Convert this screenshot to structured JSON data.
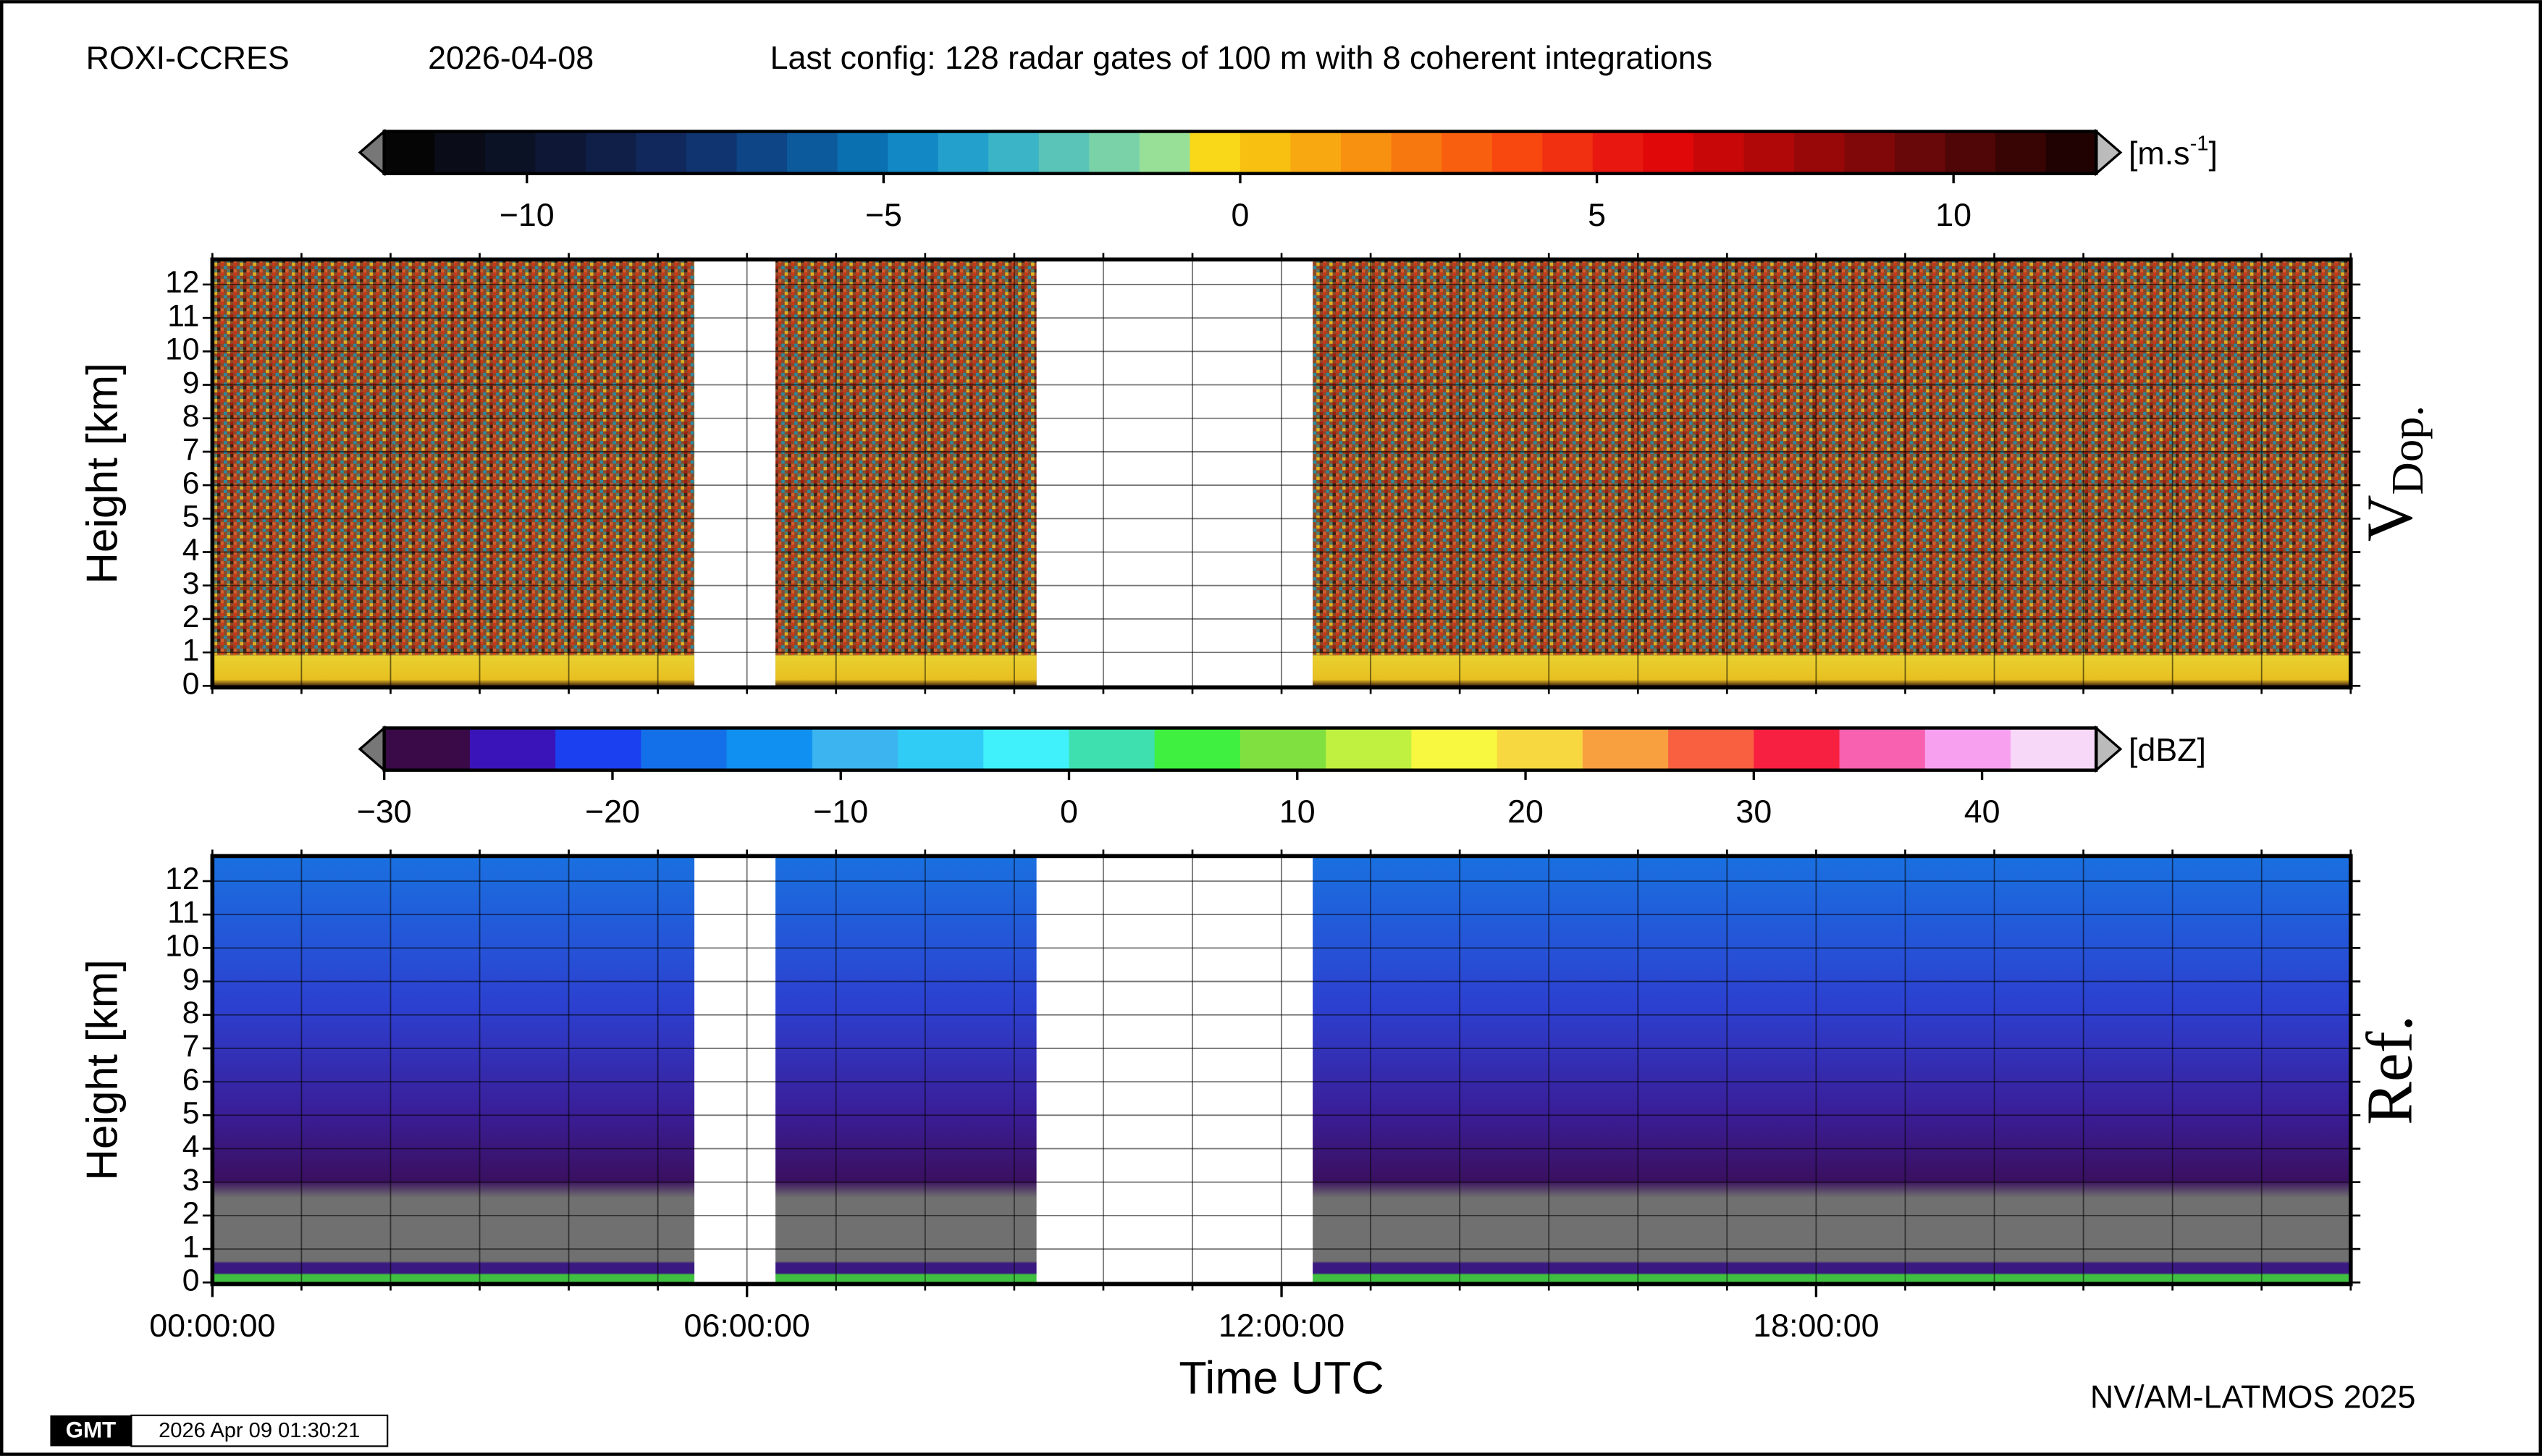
{
  "header": {
    "station": "ROXI-CCRES",
    "date": "2026-04-08",
    "config": "Last config: 128 radar gates of 100 m with 8 coherent integrations"
  },
  "chart_data": [
    {
      "type": "heatmap",
      "side_label": "V",
      "side_label_sub": "Dop.",
      "ylabel": "Height [km]",
      "colorbar": {
        "lim": [
          -12,
          12
        ],
        "ticks": [
          {
            "value": -10,
            "label": "−10"
          },
          {
            "value": -5,
            "label": "−5"
          },
          0,
          5,
          10
        ],
        "unit": "[m.s",
        "unit_sup": "-1",
        "unit_end": "]",
        "colors": [
          "#050505",
          "#0a0c18",
          "#0c1226",
          "#0e1836",
          "#0f1f48",
          "#10285c",
          "#0f3470",
          "#0e4586",
          "#0c5a9c",
          "#0a70b0",
          "#1288c4",
          "#24a0cc",
          "#3cb4c8",
          "#5ac4b8",
          "#7ad2a8",
          "#98e098",
          "#f8d818",
          "#f8c010",
          "#f8a810",
          "#f89010",
          "#f87810",
          "#f86010",
          "#f84810",
          "#f03010",
          "#e81810",
          "#e00808",
          "#c80808",
          "#b00808",
          "#980808",
          "#800808",
          "#680808",
          "#500606",
          "#380404",
          "#200202"
        ]
      },
      "xlim": [
        0,
        24
      ],
      "ylim": [
        0,
        12.7
      ],
      "yticks": [
        0,
        1,
        2,
        3,
        4,
        5,
        6,
        7,
        8,
        9,
        10,
        11,
        12
      ],
      "xminor": [
        0,
        1,
        2,
        3,
        4,
        5,
        6,
        7,
        8,
        9,
        10,
        11,
        12,
        13,
        14,
        15,
        16,
        17,
        18,
        19,
        20,
        21,
        22,
        23,
        24
      ],
      "data_periods": [
        [
          0,
          5.41
        ],
        [
          6.32,
          9.25
        ],
        [
          12.35,
          24
        ]
      ],
      "grid": true
    },
    {
      "type": "heatmap",
      "side_label": "Ref.",
      "ylabel": "Height [km]",
      "xlabel": "Time UTC",
      "colorbar": {
        "lim": [
          -30,
          45
        ],
        "ticks": [
          {
            "value": -30,
            "label": "−30"
          },
          {
            "value": -20,
            "label": "−20"
          },
          {
            "value": -10,
            "label": "−10"
          },
          0,
          10,
          20,
          30,
          40
        ],
        "unit": "[dBZ]",
        "colors": [
          "#3a0a48",
          "#3a14b8",
          "#1a40f0",
          "#1470e8",
          "#1090f0",
          "#3cb4f0",
          "#30ccf5",
          "#40f0fa",
          "#3ee0b0",
          "#40f040",
          "#80e040",
          "#c0f040",
          "#f8f840",
          "#f8d840",
          "#f8a040",
          "#f86040",
          "#f82040",
          "#f860b0",
          "#f8a0f0",
          "#f8d8f8"
        ]
      },
      "xlim": [
        0,
        24
      ],
      "ylim": [
        0,
        12.7
      ],
      "yticks": [
        0,
        1,
        2,
        3,
        4,
        5,
        6,
        7,
        8,
        9,
        10,
        11,
        12
      ],
      "xticks": [
        {
          "value": 0,
          "label": "00:00:00"
        },
        {
          "value": 6,
          "label": "06:00:00"
        },
        {
          "value": 12,
          "label": "12:00:00"
        },
        {
          "value": 18,
          "label": "18:00:00"
        }
      ],
      "xminor": [
        0,
        1,
        2,
        3,
        4,
        5,
        6,
        7,
        8,
        9,
        10,
        11,
        12,
        13,
        14,
        15,
        16,
        17,
        18,
        19,
        20,
        21,
        22,
        23,
        24
      ],
      "data_periods": [
        [
          0,
          5.41
        ],
        [
          6.32,
          9.25
        ],
        [
          12.35,
          24
        ]
      ],
      "grid": true
    }
  ],
  "footer": {
    "credit": "NV/AM-LATMOS 2025",
    "logo": "GMT",
    "timestamp": "2026 Apr 09 01:30:21"
  }
}
